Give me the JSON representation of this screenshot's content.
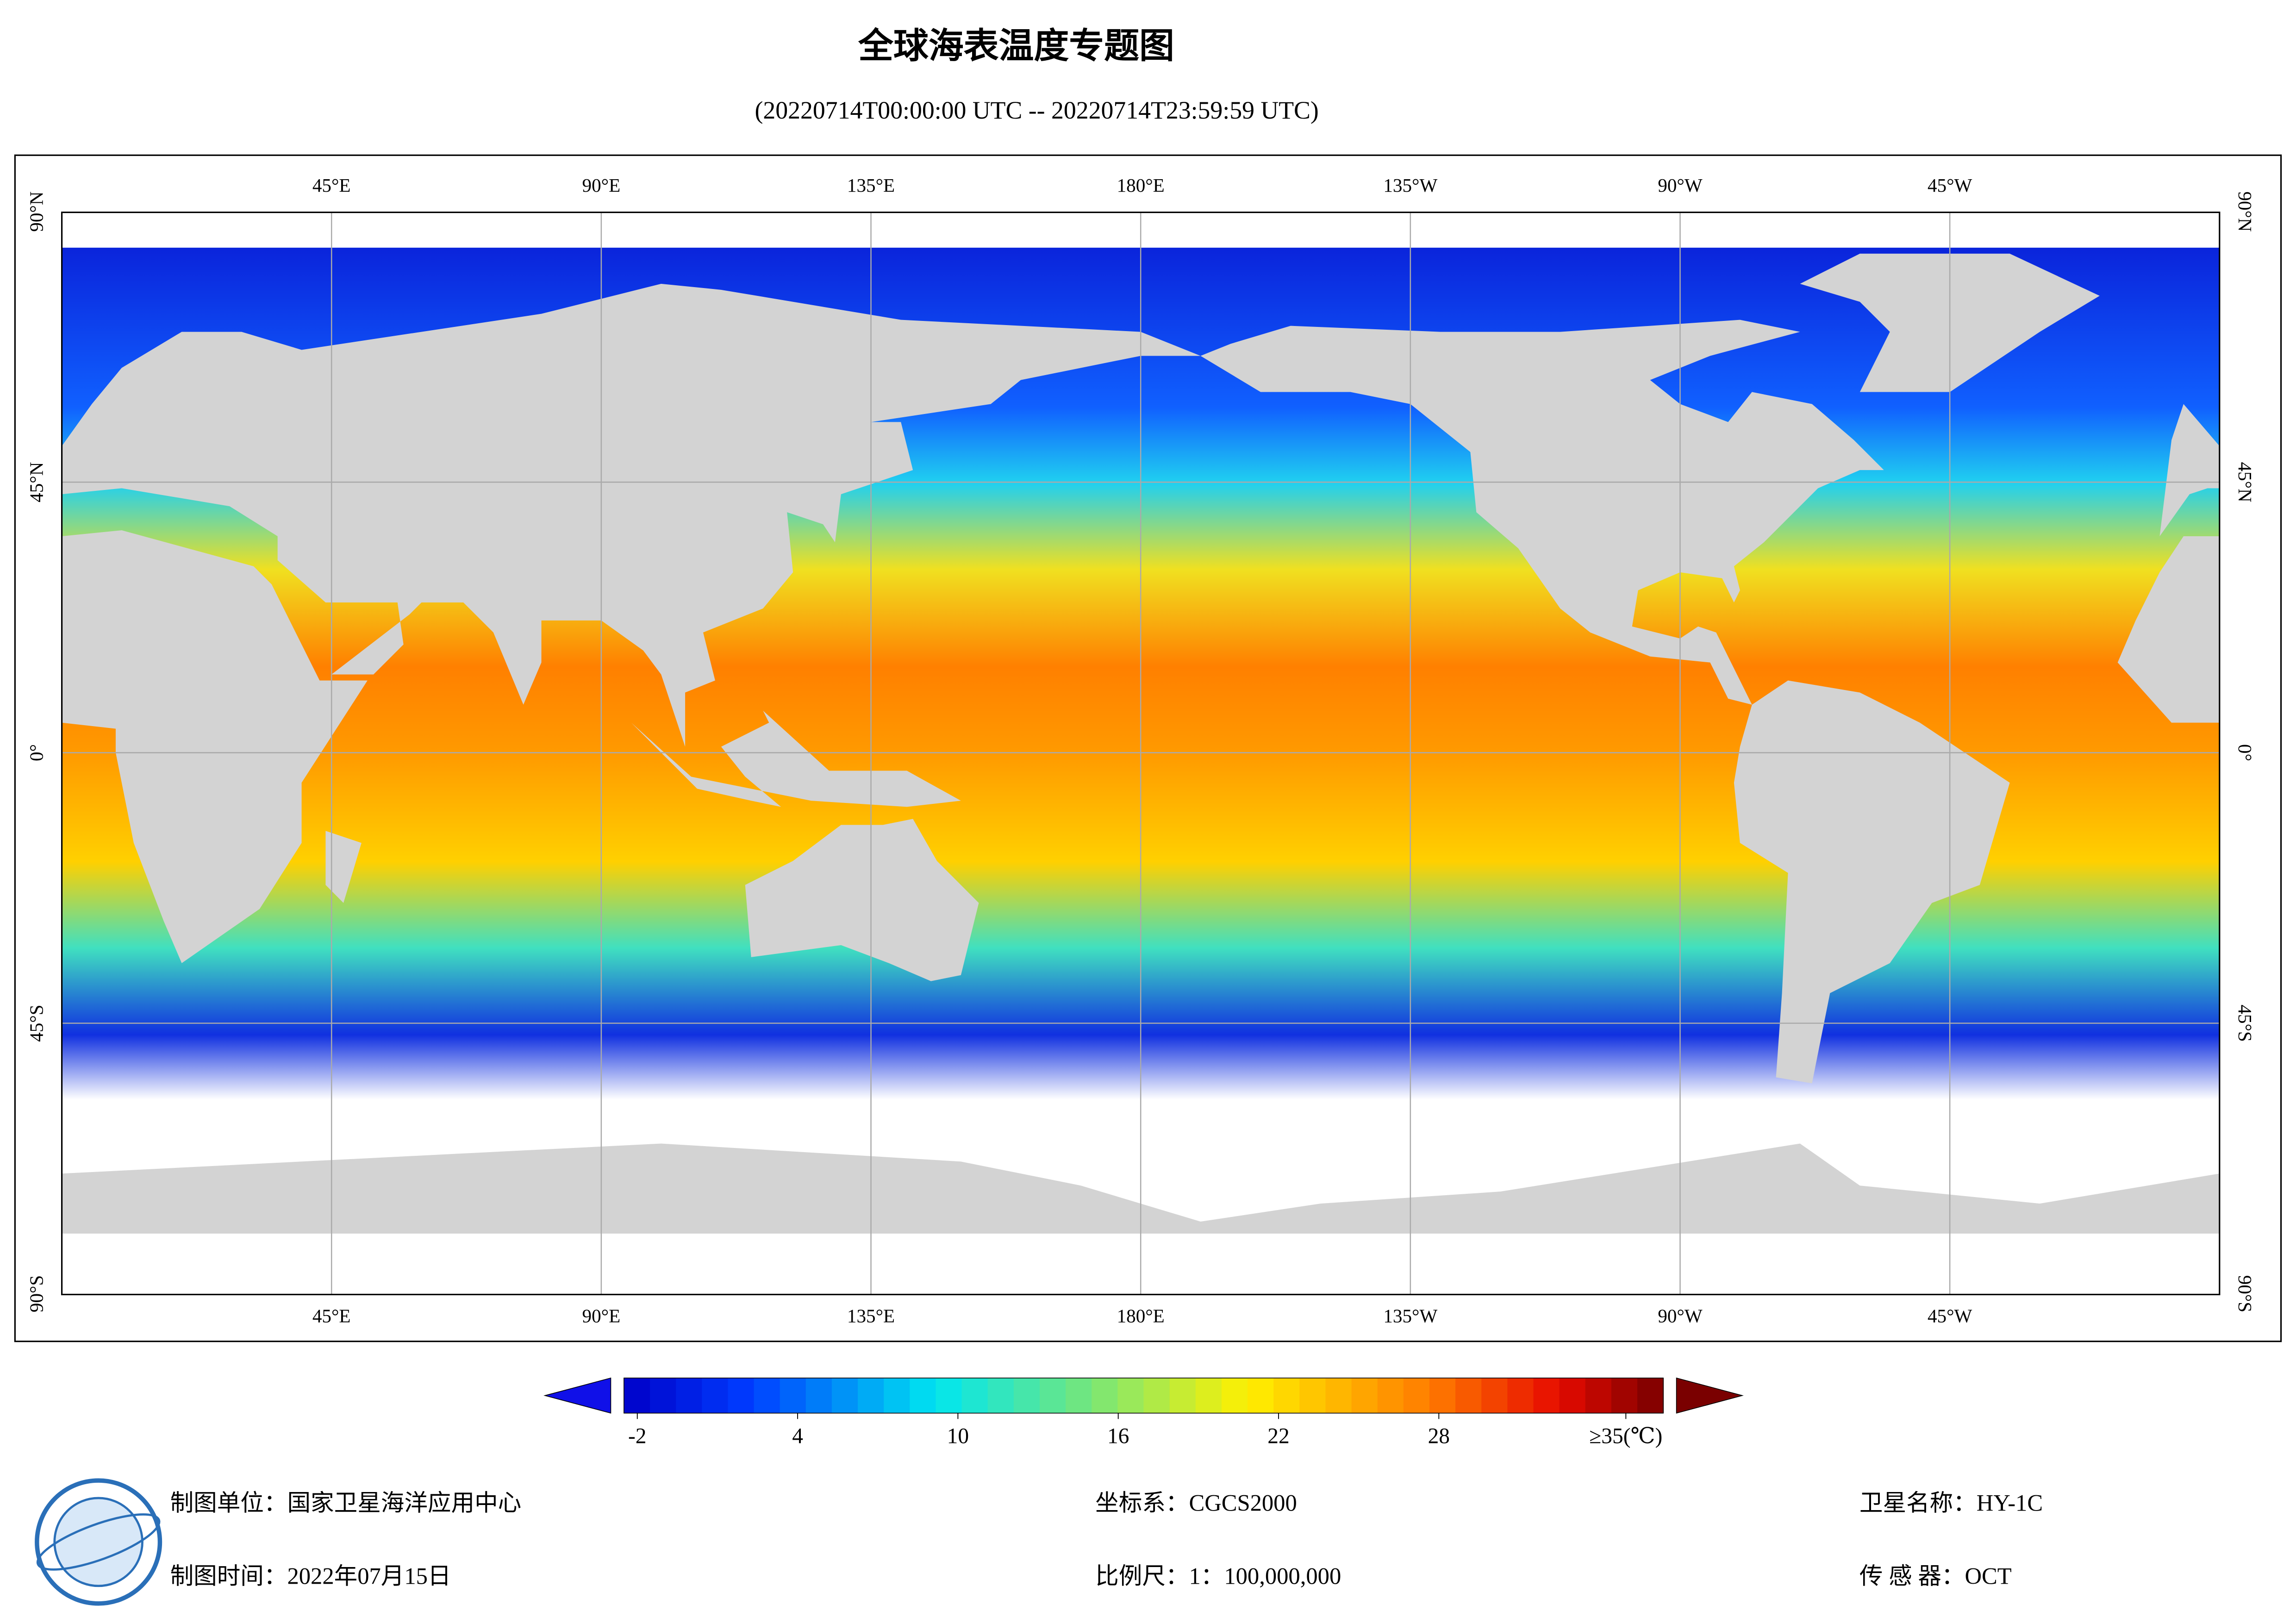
{
  "header": {
    "title": "全球海表温度专题图",
    "subtitle": "(20220714T00:00:00 UTC -- 20220714T23:59:59 UTC)"
  },
  "map": {
    "lon_labels": [
      "45°E",
      "90°E",
      "135°E",
      "180°E",
      "135°W",
      "90°W",
      "45°W"
    ],
    "lat_labels": [
      "90°N",
      "45°N",
      "0°",
      "45°S",
      "90°S"
    ]
  },
  "colorbar": {
    "range": [
      -2.5,
      36.4
    ],
    "ticks": [
      -2,
      4,
      10,
      16,
      22,
      28,
      {
        "value": 35,
        "label": "≥35(℃)"
      }
    ]
  },
  "footer": {
    "rows": [
      [
        "制图单位：国家卫星海洋应用中心",
        "坐标系：CGCS2000",
        "卫星名称：HY-1C"
      ],
      [
        "制图时间：2022年07月15日",
        "比例尺：1：100,000,000",
        "传 感 器：OCT"
      ]
    ]
  }
}
